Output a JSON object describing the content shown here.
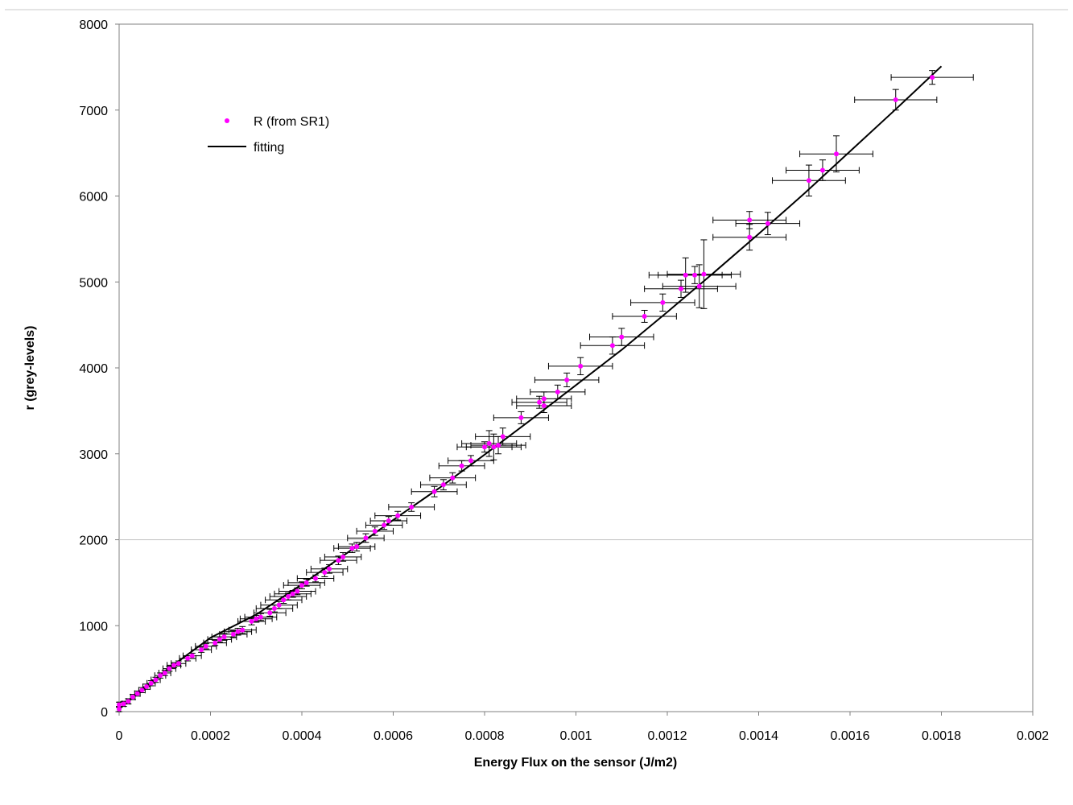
{
  "chart_data": {
    "type": "scatter",
    "title": "",
    "xlabel": "Energy Flux on the sensor (J/m2)",
    "ylabel": "r (grey-levels)",
    "xlim": [
      0,
      0.002
    ],
    "ylim": [
      0,
      8000
    ],
    "x_ticks": [
      0,
      0.0002,
      0.0004,
      0.0006,
      0.0008,
      0.001,
      0.0012,
      0.0014,
      0.0016,
      0.0018,
      0.002
    ],
    "x_tick_labels": [
      "0",
      "0.0002",
      "0.0004",
      "0.0006",
      "0.0008",
      "0.001",
      "0.0012",
      "0.0014",
      "0.0016",
      "0.0018",
      "0.002"
    ],
    "y_ticks": [
      0,
      1000,
      2000,
      3000,
      4000,
      5000,
      6000,
      7000,
      8000
    ],
    "y_tick_labels": [
      "0",
      "1000",
      "2000",
      "3000",
      "4000",
      "5000",
      "6000",
      "7000",
      "8000"
    ],
    "grid": "horizontal line at 2000 only",
    "legend_position": "top-left",
    "colors": {
      "points": "#ff00ff",
      "fit": "#000000",
      "errorbars": "#000000",
      "grid": "#c0c0c0",
      "frame": "#808080"
    },
    "series": [
      {
        "name": "R (from SR1)",
        "kind": "scatter-with-errorbars",
        "points": [
          [
            0.0,
            30,
            3e-06,
            30
          ],
          [
            0.0,
            80,
            3e-06,
            30
          ],
          [
            1e-05,
            90,
            3e-06,
            30
          ],
          [
            2e-05,
            120,
            4e-06,
            30
          ],
          [
            3e-05,
            170,
            5e-06,
            30
          ],
          [
            4e-05,
            210,
            6e-06,
            30
          ],
          [
            5e-05,
            250,
            7e-06,
            30
          ],
          [
            6e-05,
            290,
            8e-06,
            30
          ],
          [
            7e-05,
            330,
            9e-06,
            30
          ],
          [
            8e-05,
            370,
            1e-05,
            30
          ],
          [
            9e-05,
            420,
            1.2e-05,
            30
          ],
          [
            0.0001,
            450,
            1.3e-05,
            30
          ],
          [
            0.00011,
            500,
            1.4e-05,
            30
          ],
          [
            0.00012,
            540,
            1.5e-05,
            30
          ],
          [
            0.00013,
            560,
            1.6e-05,
            30
          ],
          [
            0.00015,
            620,
            1.8e-05,
            30
          ],
          [
            0.00016,
            650,
            2e-05,
            30
          ],
          [
            0.00018,
            720,
            2.2e-05,
            30
          ],
          [
            0.00019,
            760,
            2.3e-05,
            30
          ],
          [
            0.00021,
            800,
            2.5e-05,
            30
          ],
          [
            0.00022,
            840,
            2.6e-05,
            30
          ],
          [
            0.00023,
            870,
            2.7e-05,
            40
          ],
          [
            0.00025,
            900,
            3e-05,
            40
          ],
          [
            0.00026,
            930,
            3e-05,
            40
          ],
          [
            0.00027,
            950,
            3e-05,
            40
          ],
          [
            0.00029,
            1050,
            3e-05,
            40
          ],
          [
            0.0003,
            1080,
            3.5e-05,
            40
          ],
          [
            0.00031,
            1100,
            3.5e-05,
            40
          ],
          [
            0.00033,
            1150,
            3.5e-05,
            40
          ],
          [
            0.00034,
            1200,
            4e-05,
            40
          ],
          [
            0.00035,
            1240,
            4e-05,
            40
          ],
          [
            0.00036,
            1300,
            4e-05,
            40
          ],
          [
            0.00037,
            1340,
            4e-05,
            40
          ],
          [
            0.00038,
            1370,
            4e-05,
            40
          ],
          [
            0.00039,
            1400,
            4e-05,
            40
          ],
          [
            0.0004,
            1470,
            4e-05,
            40
          ],
          [
            0.00041,
            1500,
            4e-05,
            40
          ],
          [
            0.00043,
            1550,
            4e-05,
            40
          ],
          [
            0.00045,
            1620,
            4e-05,
            50
          ],
          [
            0.00046,
            1660,
            4e-05,
            50
          ],
          [
            0.00048,
            1760,
            4e-05,
            50
          ],
          [
            0.00049,
            1800,
            4e-05,
            50
          ],
          [
            0.00051,
            1900,
            4e-05,
            50
          ],
          [
            0.00052,
            1920,
            4e-05,
            50
          ],
          [
            0.00054,
            2020,
            4e-05,
            50
          ],
          [
            0.00056,
            2100,
            4e-05,
            50
          ],
          [
            0.00058,
            2170,
            4e-05,
            50
          ],
          [
            0.00059,
            2220,
            4e-05,
            50
          ],
          [
            0.00061,
            2280,
            5e-05,
            50
          ],
          [
            0.00064,
            2380,
            5e-05,
            50
          ],
          [
            0.00069,
            2560,
            5e-05,
            60
          ],
          [
            0.00071,
            2640,
            5e-05,
            60
          ],
          [
            0.00073,
            2720,
            5e-05,
            60
          ],
          [
            0.00075,
            2860,
            5e-05,
            60
          ],
          [
            0.00077,
            2920,
            5e-05,
            60
          ],
          [
            0.0008,
            3080,
            6e-05,
            60
          ],
          [
            0.00081,
            3120,
            6e-05,
            150
          ],
          [
            0.00082,
            3080,
            6e-05,
            150
          ],
          [
            0.00083,
            3100,
            6e-05,
            100
          ],
          [
            0.00084,
            3200,
            6e-05,
            100
          ],
          [
            0.00088,
            3420,
            6e-05,
            70
          ],
          [
            0.00092,
            3600,
            6e-05,
            70
          ],
          [
            0.00093,
            3560,
            6e-05,
            80
          ],
          [
            0.00093,
            3640,
            6e-05,
            80
          ],
          [
            0.00096,
            3720,
            6e-05,
            80
          ],
          [
            0.00098,
            3860,
            7e-05,
            80
          ],
          [
            0.00101,
            4020,
            7e-05,
            100
          ],
          [
            0.00108,
            4260,
            7e-05,
            100
          ],
          [
            0.0011,
            4360,
            7e-05,
            100
          ],
          [
            0.00115,
            4600,
            7e-05,
            70
          ],
          [
            0.00119,
            4760,
            7e-05,
            100
          ],
          [
            0.00123,
            4920,
            8e-05,
            100
          ],
          [
            0.00124,
            5080,
            8e-05,
            200
          ],
          [
            0.00126,
            5080,
            8e-05,
            100
          ],
          [
            0.00127,
            4950,
            8e-05,
            250
          ],
          [
            0.00128,
            5090,
            8e-05,
            400
          ],
          [
            0.00138,
            5520,
            8e-05,
            150
          ],
          [
            0.00138,
            5720,
            8e-05,
            100
          ],
          [
            0.00142,
            5680,
            7e-05,
            130
          ],
          [
            0.00151,
            6180,
            8e-05,
            180
          ],
          [
            0.00154,
            6300,
            8e-05,
            120
          ],
          [
            0.00157,
            6490,
            8e-05,
            210
          ],
          [
            0.0017,
            7120,
            9e-05,
            120
          ],
          [
            0.00178,
            7380,
            9e-05,
            80
          ]
        ]
      },
      {
        "name": "fitting",
        "kind": "line",
        "x": [
          0,
          0.0001,
          0.0002,
          0.0003,
          0.0004,
          0.0005,
          0.0006,
          0.0007,
          0.0008,
          0.0009,
          0.001,
          0.0011,
          0.0012,
          0.0013,
          0.0014,
          0.0015,
          0.0016,
          0.0017,
          0.0018
        ],
        "y": [
          30,
          470,
          860,
          1130,
          1480,
          1850,
          2230,
          2600,
          2990,
          3390,
          3800,
          4210,
          4650,
          5100,
          5560,
          6030,
          6520,
          7010,
          7510
        ]
      }
    ]
  }
}
